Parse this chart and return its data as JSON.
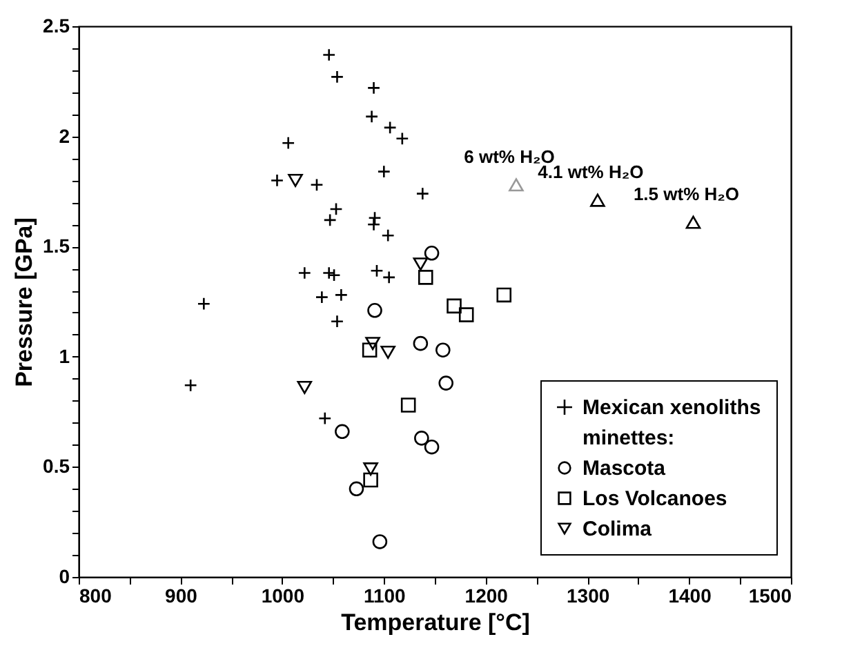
{
  "chart_data": {
    "type": "scatter",
    "xlabel": "Temperature [°C]",
    "ylabel": "Pressure [GPa]",
    "xlim": [
      800,
      1500
    ],
    "ylim": [
      0,
      2.5
    ],
    "xticks": [
      800,
      {
        "value": 850,
        "label": null
      },
      900,
      {
        "value": 950,
        "label": null
      },
      1000,
      {
        "value": 1050,
        "label": null
      },
      1100,
      {
        "value": 1150,
        "label": null
      },
      1200,
      {
        "value": 1250,
        "label": null
      },
      1300,
      {
        "value": 1350,
        "label": null
      },
      1400,
      {
        "value": 1450,
        "label": null
      },
      1500
    ],
    "yticks": [
      0,
      {
        "value": 0.1,
        "label": null
      },
      {
        "value": 0.2,
        "label": null
      },
      {
        "value": 0.3,
        "label": null
      },
      {
        "value": 0.4,
        "label": null
      },
      0.5,
      {
        "value": 0.6,
        "label": null
      },
      {
        "value": 0.7,
        "label": null
      },
      {
        "value": 0.8,
        "label": null
      },
      {
        "value": 0.9,
        "label": null
      },
      1,
      {
        "value": 1.1,
        "label": null
      },
      {
        "value": 1.2,
        "label": null
      },
      {
        "value": 1.3,
        "label": null
      },
      {
        "value": 1.4,
        "label": null
      },
      1.5,
      {
        "value": 1.6,
        "label": null
      },
      {
        "value": 1.7,
        "label": null
      },
      {
        "value": 1.8,
        "label": null
      },
      {
        "value": 1.9,
        "label": null
      },
      2,
      {
        "value": 2.1,
        "label": null
      },
      {
        "value": 2.2,
        "label": null
      },
      {
        "value": 2.3,
        "label": null
      },
      {
        "value": 2.4,
        "label": null
      },
      2.5
    ],
    "grid": false,
    "legend": "bottom right",
    "annotations": [
      "minettes:"
    ],
    "series": [
      {
        "name": "Mexican xenoliths",
        "color": "#000000",
        "marker": "cross",
        "x": [
          1046,
          1054,
          1090,
          1088,
          1106,
          1118,
          1006,
          995,
          1034,
          1100,
          1138,
          1053,
          1047,
          1091,
          1090,
          1104,
          1022,
          1046,
          1051,
          1093,
          1105,
          1039,
          1058,
          923,
          1054,
          910,
          1042
        ],
        "values": [
          2.37,
          2.27,
          2.22,
          2.09,
          2.04,
          1.99,
          1.97,
          1.8,
          1.78,
          1.84,
          1.74,
          1.67,
          1.62,
          1.63,
          1.6,
          1.55,
          1.38,
          1.38,
          1.37,
          1.39,
          1.36,
          1.27,
          1.28,
          1.24,
          1.16,
          0.87,
          0.72
        ]
      },
      {
        "name": "Mascota",
        "color": "#000000",
        "marker": "circle",
        "x": [
          1091,
          1136,
          1158,
          1161,
          1059,
          1137,
          1147,
          1073,
          1096,
          1147
        ],
        "values": [
          1.21,
          1.06,
          1.03,
          0.88,
          0.66,
          0.63,
          0.59,
          0.4,
          0.16,
          1.47
        ]
      },
      {
        "name": "Los Volcanoes",
        "color": "#000000",
        "marker": "square",
        "x": [
          1141,
          1169,
          1181,
          1218,
          1086,
          1124,
          1087
        ],
        "values": [
          1.36,
          1.23,
          1.19,
          1.28,
          1.03,
          0.78,
          0.44
        ]
      },
      {
        "name": "Colima",
        "color": "#000000",
        "marker": "triangle-down",
        "x": [
          1013,
          1136,
          1089,
          1104,
          1022,
          1087
        ],
        "values": [
          1.8,
          1.42,
          1.06,
          1.02,
          0.86,
          0.49
        ]
      },
      {
        "name": "6 wt% H₂O",
        "color": "#999999",
        "marker": "triangle",
        "x": [
          1230
        ],
        "values": [
          1.78
        ]
      },
      {
        "name": "4.1 wt% H₂O",
        "color": "#000000",
        "marker": "triangle",
        "x": [
          1310
        ],
        "values": [
          1.71
        ]
      },
      {
        "name": "1.5 wt% H₂O",
        "color": "#000000",
        "marker": "triangle",
        "x": [
          1404
        ],
        "values": [
          1.61
        ]
      }
    ]
  }
}
